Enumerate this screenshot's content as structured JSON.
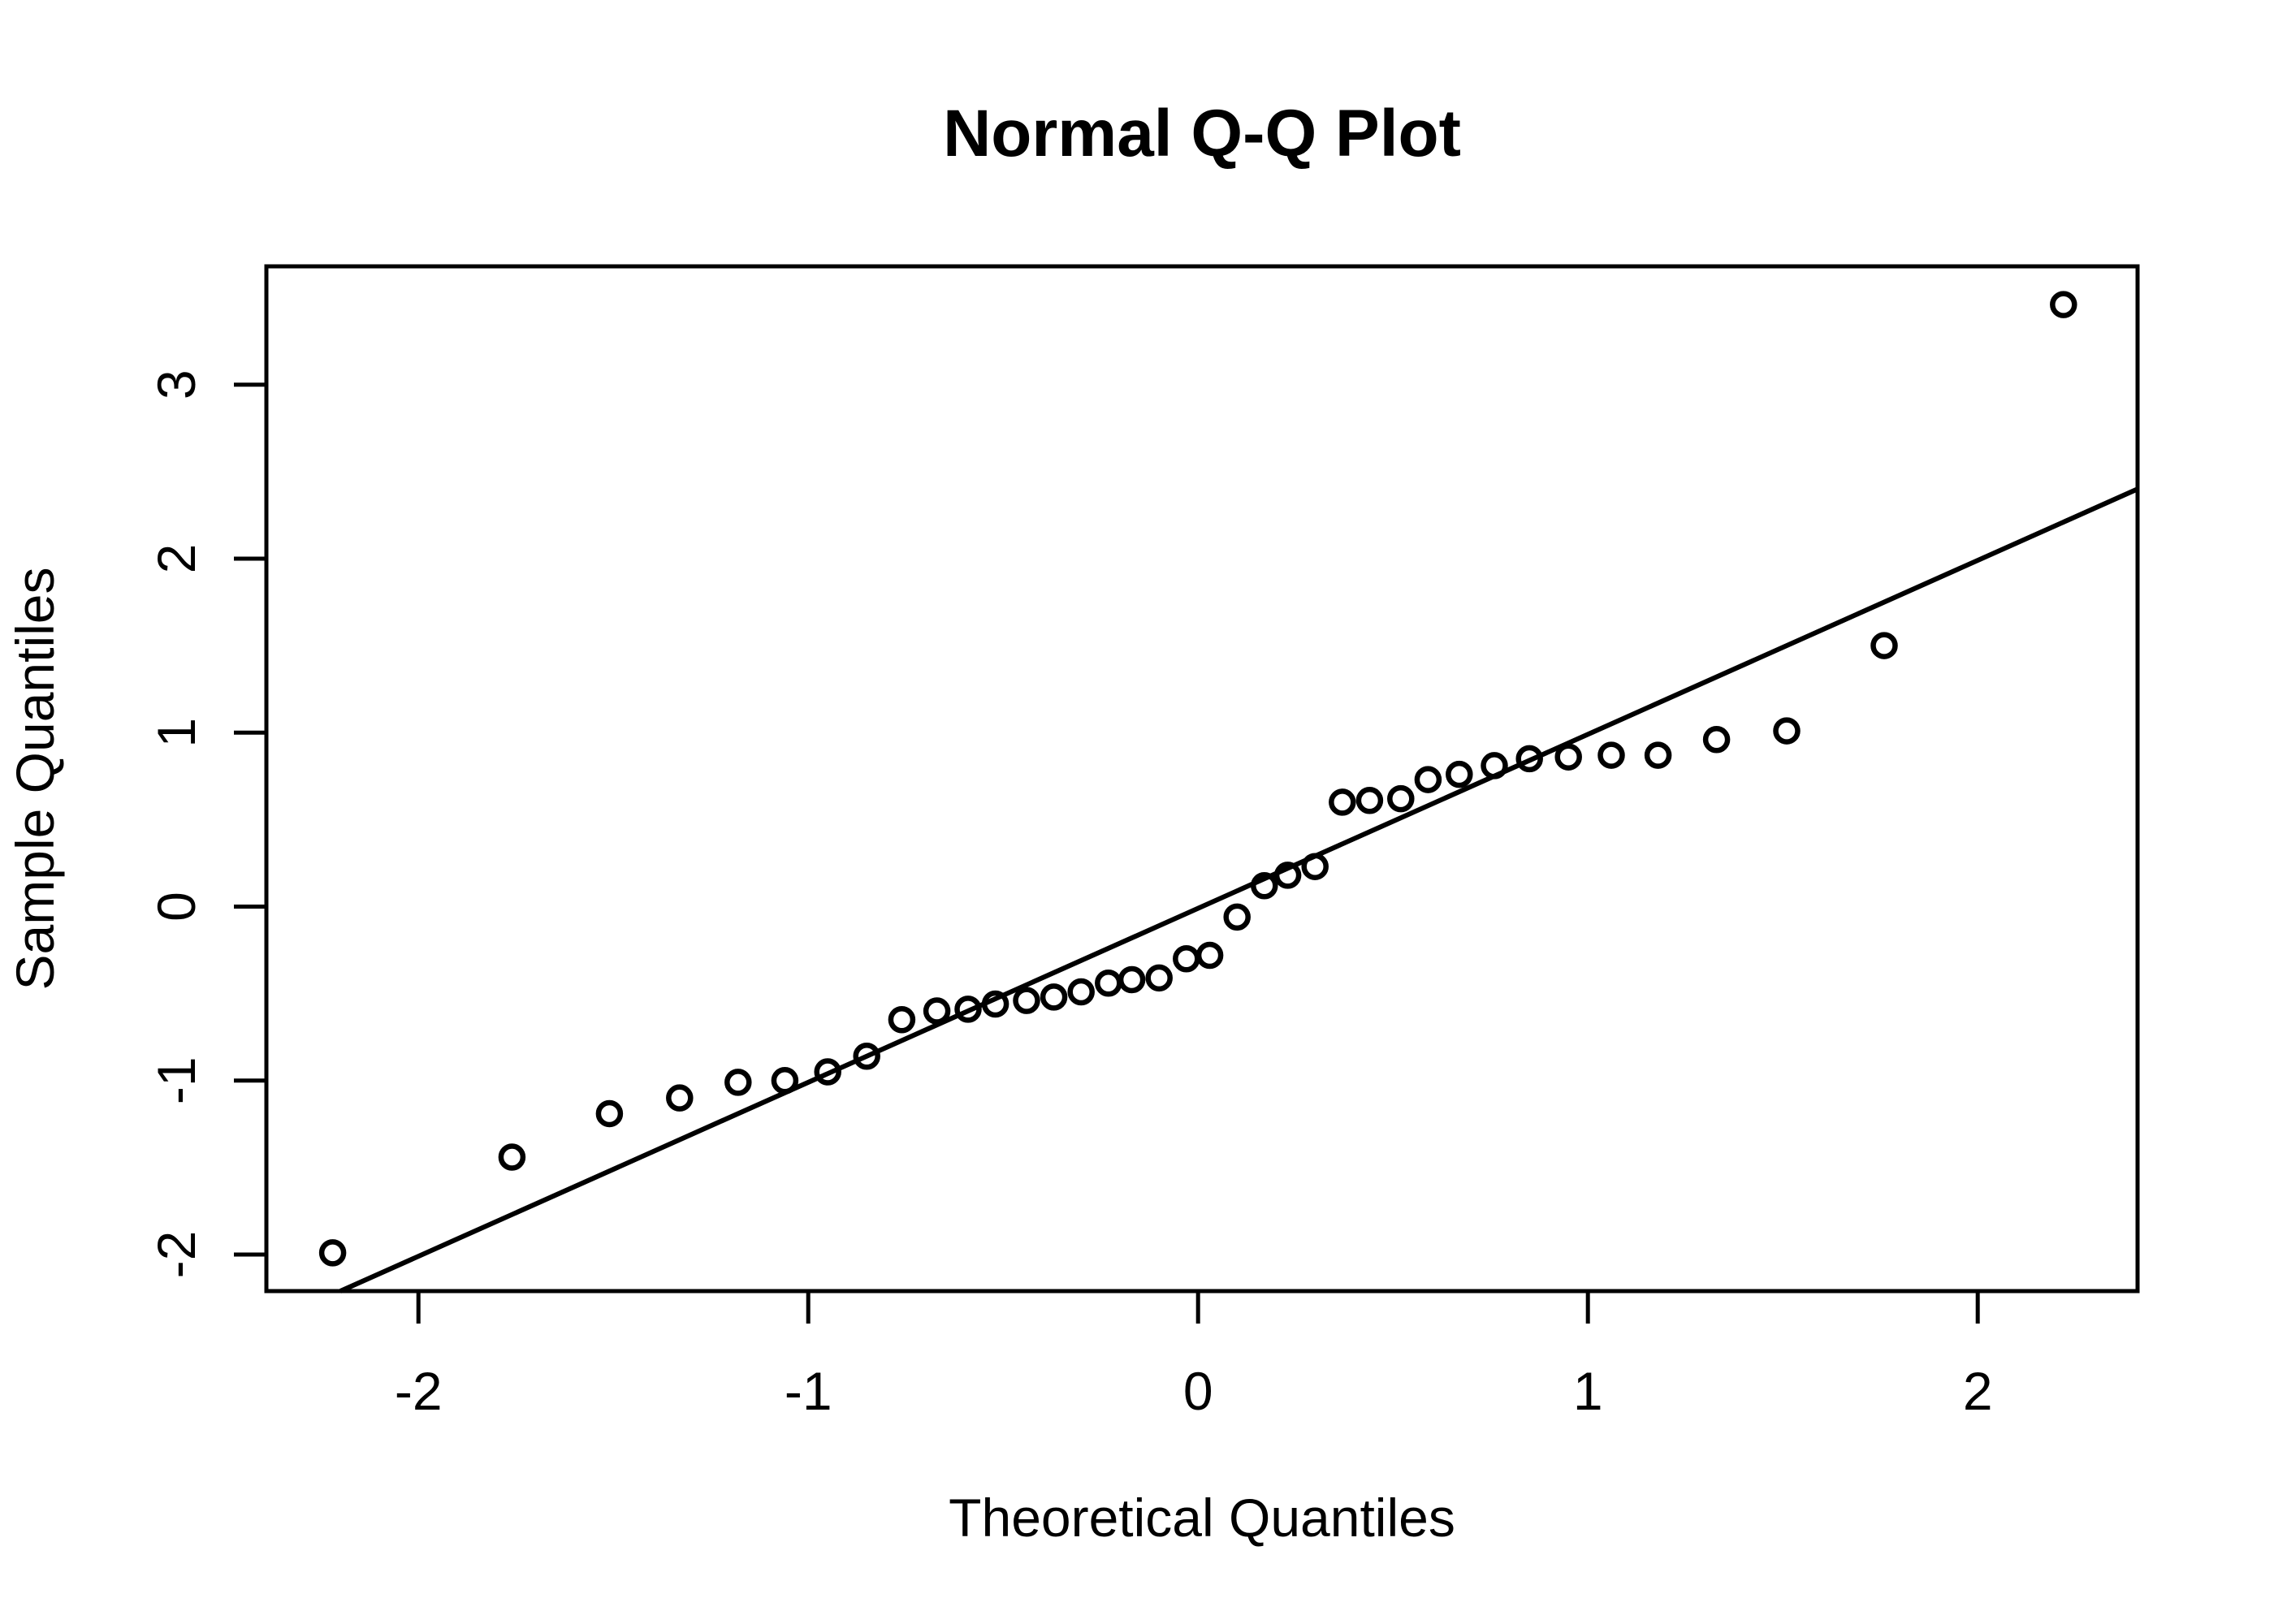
{
  "chart_data": {
    "type": "scatter",
    "title": "Normal Q-Q Plot",
    "xlabel": "Theoretical Quantiles",
    "ylabel": "Sample Quantiles",
    "x_ticks": [
      -2,
      -1,
      0,
      1,
      2
    ],
    "y_ticks": [
      -2,
      -1,
      0,
      1,
      2,
      3
    ],
    "xlim": [
      -2.39,
      2.41
    ],
    "ylim": [
      -2.21,
      3.68
    ],
    "grid": false,
    "marker": "open-circle",
    "points_x": [
      -2.22,
      -1.76,
      -1.51,
      -1.33,
      -1.18,
      -1.06,
      -0.95,
      -0.85,
      -0.76,
      -0.67,
      -0.59,
      -0.52,
      -0.44,
      -0.37,
      -0.3,
      -0.23,
      -0.17,
      -0.1,
      -0.03,
      0.03,
      0.1,
      0.17,
      0.23,
      0.3,
      0.37,
      0.44,
      0.52,
      0.59,
      0.67,
      0.76,
      0.85,
      0.95,
      1.06,
      1.18,
      1.33,
      1.51,
      1.76,
      2.22
    ],
    "points_y": [
      -1.99,
      -1.44,
      -1.19,
      -1.1,
      -1.01,
      -1.0,
      -0.95,
      -0.86,
      -0.65,
      -0.6,
      -0.59,
      -0.56,
      -0.54,
      -0.52,
      -0.49,
      -0.44,
      -0.42,
      -0.41,
      -0.3,
      -0.28,
      -0.06,
      0.12,
      0.18,
      0.23,
      0.6,
      0.61,
      0.62,
      0.73,
      0.76,
      0.81,
      0.85,
      0.86,
      0.87,
      0.87,
      0.96,
      1.01,
      1.5,
      3.46
    ],
    "reference_line": {
      "slope": 1,
      "intercept": -0.01
    },
    "colors": {
      "foreground": "#000000",
      "background": "#ffffff"
    }
  }
}
